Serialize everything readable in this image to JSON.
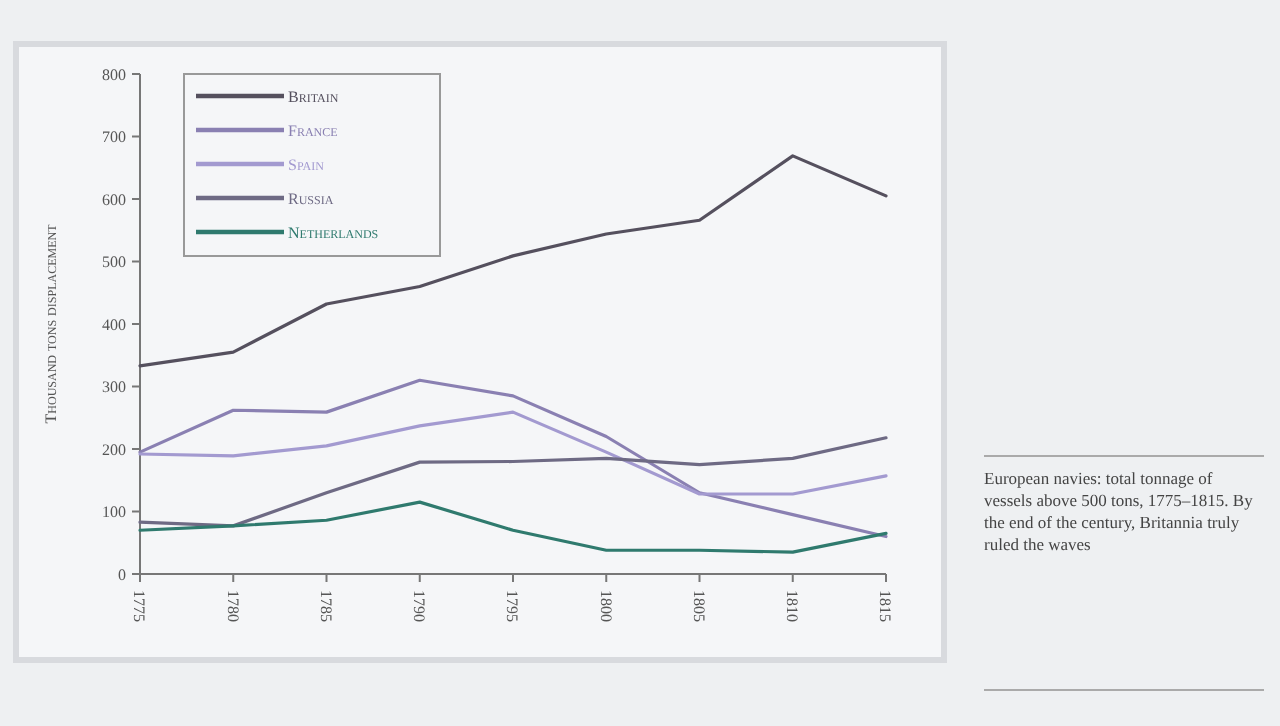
{
  "chart_data": {
    "type": "line",
    "ylabel": "Thousand tons displacement",
    "x": [
      1775,
      1780,
      1785,
      1790,
      1795,
      1800,
      1805,
      1810,
      1815
    ],
    "xlim": [
      1775,
      1815
    ],
    "xticks": [
      1775,
      1780,
      1785,
      1790,
      1795,
      1800,
      1805,
      1810,
      1815
    ],
    "ylim": [
      0,
      800
    ],
    "yticks": [
      0,
      100,
      200,
      300,
      400,
      500,
      600,
      700,
      800
    ],
    "series": [
      {
        "name": "Britain",
        "color": "#55505e",
        "values": [
          333,
          355,
          432,
          460,
          509,
          544,
          566,
          669,
          605
        ]
      },
      {
        "name": "France",
        "color": "#8a80b2",
        "values": [
          195,
          262,
          259,
          310,
          285,
          220,
          130,
          95,
          60
        ]
      },
      {
        "name": "Spain",
        "color": "#a39ad0",
        "values": [
          192,
          189,
          205,
          237,
          259,
          195,
          128,
          128,
          157
        ]
      },
      {
        "name": "Russia",
        "color": "#6e6a84",
        "values": [
          83,
          77,
          130,
          179,
          180,
          185,
          175,
          185,
          218
        ]
      },
      {
        "name": "Netherlands",
        "color": "#2f7a6e",
        "values": [
          70,
          77,
          86,
          115,
          70,
          38,
          38,
          35,
          65
        ]
      }
    ],
    "legend": "top left",
    "grid": false,
    "marker": "none",
    "line_style": "solid",
    "annotations": [
      "European navies: total tonnage of vessels above 500 tons, 1775–1815. By the end of the century, Britannia truly ruled the waves"
    ]
  }
}
